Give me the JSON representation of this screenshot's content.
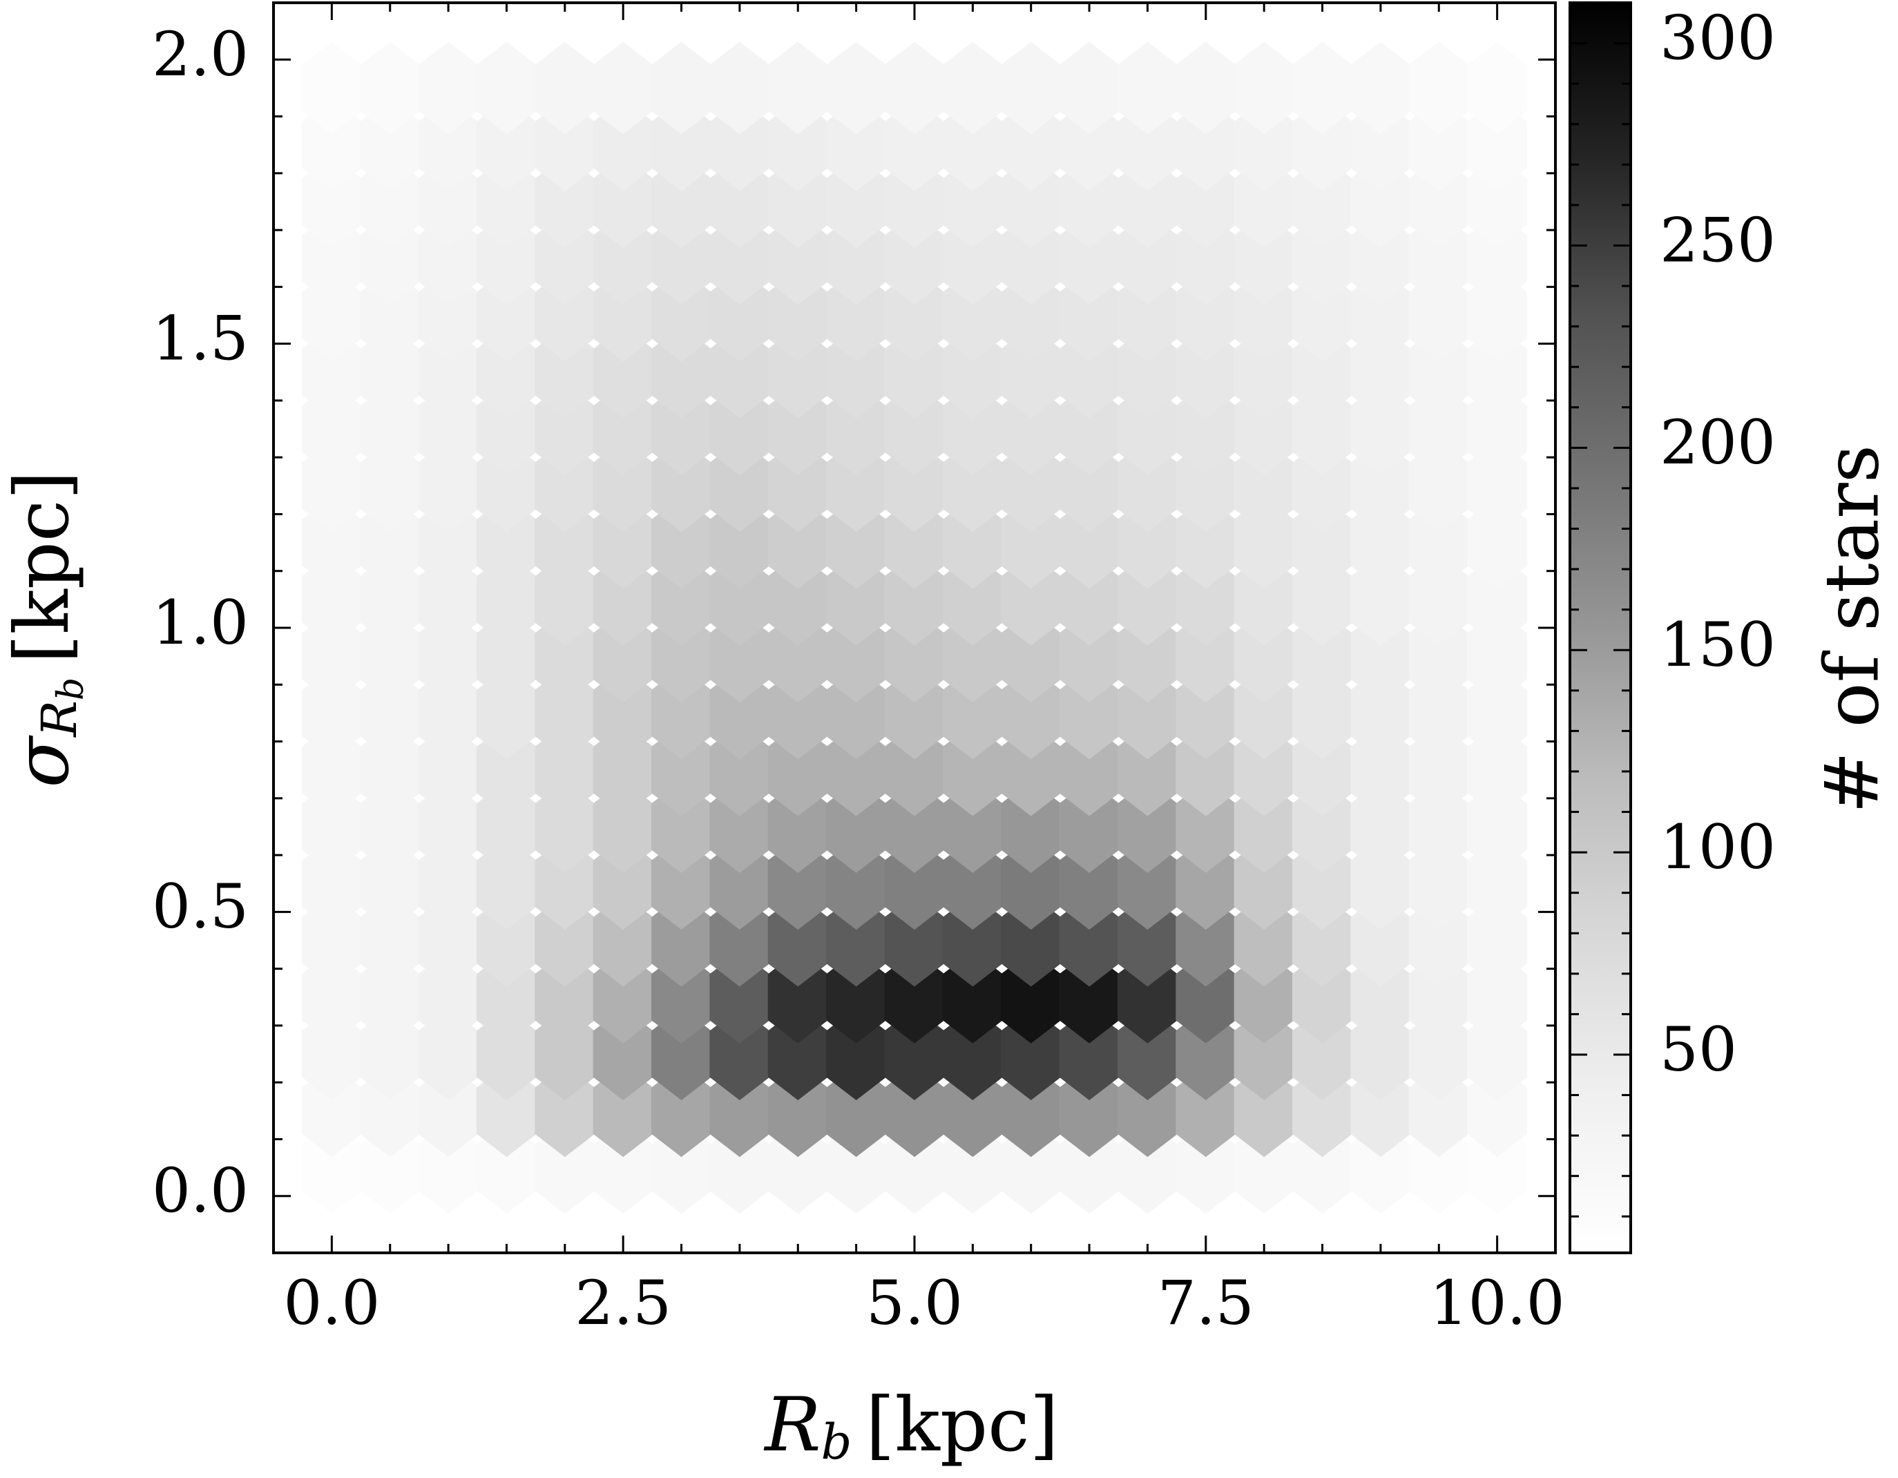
{
  "chart_data": {
    "type": "hexbin",
    "xlabel": {
      "symbol": "R",
      "subscript": "b",
      "unit": "[kpc]"
    },
    "ylabel": {
      "symbol": "σ",
      "subscript": "R",
      "subsubscript": "b",
      "unit": "[kpc]"
    },
    "colorbar_label": "# of stars",
    "xlim": [
      -0.5,
      10.5
    ],
    "ylim": [
      -0.1,
      2.1
    ],
    "xticks": [
      {
        "value": 0,
        "label": "0.0"
      },
      2.5,
      {
        "value": 5,
        "label": "5.0"
      },
      7.5,
      {
        "value": 10,
        "label": "10.0"
      }
    ],
    "yticks": [
      {
        "value": 0,
        "label": "0.0"
      },
      0.5,
      {
        "value": 1,
        "label": "1.0"
      },
      1.5,
      {
        "value": 2,
        "label": "2.0"
      }
    ],
    "xminorticks": [
      0.5,
      1,
      1.5,
      2,
      3,
      3.5,
      4,
      4.5,
      5.5,
      6,
      6.5,
      7,
      8,
      8.5,
      9,
      9.5
    ],
    "yminorticks": [
      0.1,
      0.2,
      0.3,
      0.4,
      0.6,
      0.7,
      0.8,
      0.9,
      1.1,
      1.2,
      1.3,
      1.4,
      1.6,
      1.7,
      1.8,
      1.9
    ],
    "clim": [
      1,
      310
    ],
    "cticks": [
      50,
      100,
      150,
      200,
      250,
      300
    ],
    "cminorticks": [
      10,
      20,
      30,
      40,
      60,
      70,
      80,
      90,
      110,
      120,
      130,
      140,
      160,
      170,
      180,
      190,
      210,
      220,
      230,
      240,
      260,
      270,
      280,
      290
    ],
    "colormap": [
      "#ffffff",
      "#f0f0f0",
      "#d9d9d9",
      "#bdbdbd",
      "#969696",
      "#737373",
      "#525252",
      "#252525",
      "#000000"
    ],
    "x": [
      0,
      0.5,
      1,
      1.5,
      2,
      2.5,
      3,
      3.5,
      4,
      4.5,
      5,
      5.5,
      6,
      6.5,
      7,
      7.5,
      8,
      8.5,
      9,
      9.5,
      10
    ],
    "y": [
      0.05,
      0.15,
      0.25,
      0.35,
      0.45,
      0.55,
      0.65,
      0.75,
      0.85,
      0.95,
      1.05,
      1.15,
      1.25,
      1.35,
      1.45,
      1.55,
      1.65,
      1.75,
      1.85,
      1.95
    ],
    "values": [
      [
        5,
        8,
        12,
        15,
        18,
        20,
        22,
        25,
        25,
        25,
        25,
        25,
        25,
        25,
        25,
        22,
        20,
        18,
        15,
        10,
        5
      ],
      [
        20,
        25,
        30,
        60,
        90,
        120,
        140,
        150,
        155,
        160,
        160,
        160,
        160,
        155,
        150,
        130,
        100,
        70,
        50,
        35,
        20
      ],
      [
        25,
        30,
        40,
        70,
        100,
        140,
        180,
        230,
        250,
        260,
        255,
        255,
        250,
        240,
        220,
        170,
        120,
        80,
        55,
        40,
        25
      ],
      [
        25,
        30,
        40,
        70,
        100,
        130,
        170,
        220,
        260,
        270,
        280,
        285,
        290,
        285,
        260,
        200,
        130,
        85,
        55,
        40,
        25
      ],
      [
        25,
        30,
        40,
        65,
        90,
        115,
        150,
        180,
        210,
        220,
        230,
        235,
        240,
        230,
        220,
        170,
        115,
        80,
        50,
        38,
        25
      ],
      [
        25,
        30,
        40,
        60,
        80,
        100,
        130,
        150,
        170,
        175,
        180,
        180,
        185,
        180,
        170,
        140,
        100,
        70,
        45,
        35,
        25
      ],
      [
        25,
        30,
        40,
        60,
        75,
        95,
        120,
        135,
        145,
        150,
        150,
        150,
        155,
        150,
        145,
        125,
        90,
        65,
        45,
        35,
        25
      ],
      [
        25,
        30,
        40,
        60,
        75,
        95,
        115,
        125,
        130,
        130,
        130,
        125,
        125,
        125,
        120,
        100,
        80,
        60,
        45,
        35,
        25
      ],
      [
        25,
        30,
        40,
        55,
        75,
        95,
        110,
        120,
        120,
        120,
        115,
        110,
        110,
        105,
        100,
        90,
        70,
        55,
        45,
        35,
        25
      ],
      [
        25,
        30,
        40,
        55,
        75,
        90,
        105,
        110,
        110,
        110,
        105,
        100,
        100,
        95,
        90,
        80,
        65,
        55,
        45,
        35,
        25
      ],
      [
        25,
        30,
        40,
        55,
        70,
        85,
        100,
        105,
        105,
        100,
        95,
        90,
        85,
        85,
        80,
        75,
        60,
        50,
        40,
        32,
        25
      ],
      [
        25,
        30,
        40,
        55,
        70,
        80,
        95,
        100,
        95,
        90,
        85,
        80,
        75,
        75,
        70,
        65,
        55,
        50,
        40,
        32,
        22
      ],
      [
        22,
        28,
        38,
        52,
        65,
        75,
        85,
        90,
        85,
        80,
        75,
        70,
        70,
        70,
        65,
        60,
        55,
        48,
        40,
        30,
        22
      ],
      [
        22,
        28,
        38,
        50,
        62,
        72,
        80,
        82,
        80,
        75,
        70,
        65,
        65,
        65,
        60,
        58,
        52,
        45,
        38,
        30,
        22
      ],
      [
        22,
        28,
        36,
        48,
        60,
        68,
        75,
        75,
        72,
        70,
        65,
        62,
        60,
        60,
        58,
        55,
        50,
        45,
        38,
        30,
        22
      ],
      [
        20,
        26,
        35,
        45,
        55,
        62,
        68,
        70,
        68,
        65,
        62,
        58,
        58,
        56,
        55,
        52,
        48,
        42,
        36,
        28,
        20
      ],
      [
        18,
        24,
        32,
        42,
        52,
        58,
        62,
        62,
        60,
        58,
        55,
        52,
        52,
        50,
        50,
        48,
        45,
        40,
        34,
        26,
        18
      ],
      [
        16,
        22,
        30,
        40,
        48,
        52,
        55,
        55,
        52,
        50,
        48,
        46,
        46,
        45,
        45,
        44,
        40,
        36,
        30,
        24,
        16
      ],
      [
        14,
        20,
        26,
        34,
        40,
        44,
        46,
        46,
        44,
        42,
        40,
        40,
        40,
        38,
        38,
        36,
        34,
        30,
        26,
        20,
        14
      ],
      [
        10,
        14,
        18,
        22,
        26,
        28,
        30,
        30,
        28,
        28,
        26,
        26,
        26,
        26,
        25,
        24,
        22,
        20,
        18,
        14,
        10
      ]
    ]
  }
}
